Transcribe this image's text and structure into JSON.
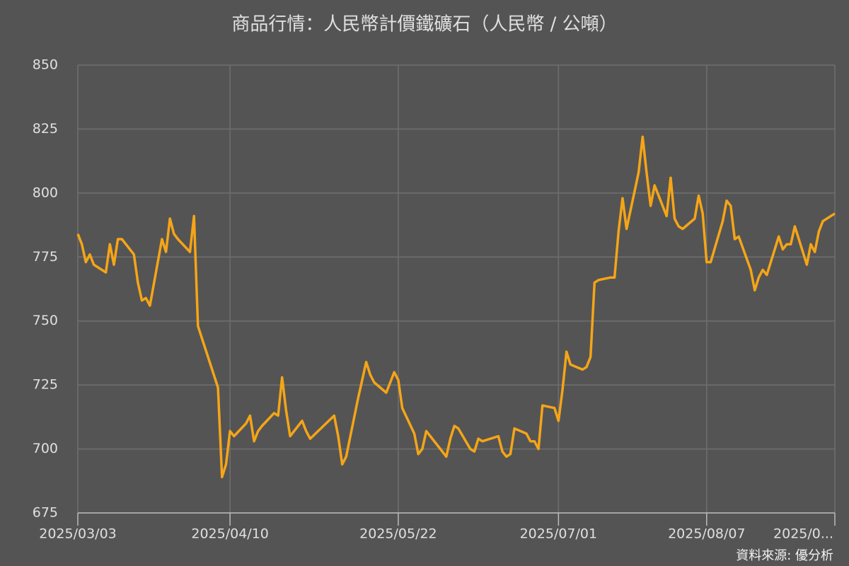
{
  "chart_data": {
    "type": "line",
    "title": "商品行情：人民幣計價鐵礦石（人民幣 / 公噸）",
    "source": "資料來源: 優分析",
    "color": "#f5a517",
    "grid": true,
    "x": [
      "2025/03/03",
      "2025/03/04",
      "2025/03/05",
      "2025/03/06",
      "2025/03/07",
      "2025/03/10",
      "2025/03/11",
      "2025/03/12",
      "2025/03/13",
      "2025/03/14",
      "2025/03/17",
      "2025/03/18",
      "2025/03/19",
      "2025/03/20",
      "2025/03/21",
      "2025/03/24",
      "2025/03/25",
      "2025/03/26",
      "2025/03/27",
      "2025/03/28",
      "2025/03/31",
      "2025/04/01",
      "2025/04/02",
      "2025/04/07",
      "2025/04/08",
      "2025/04/09",
      "2025/04/10",
      "2025/04/11",
      "2025/04/14",
      "2025/04/15",
      "2025/04/16",
      "2025/04/17",
      "2025/04/18",
      "2025/04/21",
      "2025/04/22",
      "2025/04/23",
      "2025/04/24",
      "2025/04/25",
      "2025/04/28",
      "2025/04/29",
      "2025/04/30",
      "2025/05/06",
      "2025/05/07",
      "2025/05/08",
      "2025/05/09",
      "2025/05/12",
      "2025/05/13",
      "2025/05/14",
      "2025/05/15",
      "2025/05/16",
      "2025/05/19",
      "2025/05/20",
      "2025/05/21",
      "2025/05/22",
      "2025/05/23",
      "2025/05/26",
      "2025/05/27",
      "2025/05/28",
      "2025/05/29",
      "2025/05/30",
      "2025/06/03",
      "2025/06/04",
      "2025/06/05",
      "2025/06/06",
      "2025/06/09",
      "2025/06/10",
      "2025/06/11",
      "2025/06/12",
      "2025/06/16",
      "2025/06/17",
      "2025/06/18",
      "2025/06/19",
      "2025/06/20",
      "2025/06/23",
      "2025/06/24",
      "2025/06/25",
      "2025/06/26",
      "2025/06/27",
      "2025/06/30",
      "2025/07/01",
      "2025/07/02",
      "2025/07/03",
      "2025/07/04",
      "2025/07/07",
      "2025/07/08",
      "2025/07/09",
      "2025/07/10",
      "2025/07/11",
      "2025/07/14",
      "2025/07/15",
      "2025/07/16",
      "2025/07/17",
      "2025/07/18",
      "2025/07/21",
      "2025/07/22",
      "2025/07/23",
      "2025/07/24",
      "2025/07/25",
      "2025/07/28",
      "2025/07/29",
      "2025/07/30",
      "2025/07/31",
      "2025/08/01",
      "2025/08/04",
      "2025/08/05",
      "2025/08/06",
      "2025/08/07",
      "2025/08/08",
      "2025/08/11",
      "2025/08/12",
      "2025/08/13",
      "2025/08/14",
      "2025/08/15",
      "2025/08/18",
      "2025/08/19",
      "2025/08/20",
      "2025/08/21",
      "2025/08/22",
      "2025/08/25",
      "2025/08/26",
      "2025/08/27",
      "2025/08/28",
      "2025/08/29",
      "2025/09/01",
      "2025/09/02",
      "2025/09/03",
      "2025/09/04",
      "2025/09/05",
      "2025/09/08"
    ],
    "values": [
      784,
      780,
      773,
      776,
      772,
      769,
      780,
      772,
      782,
      782,
      776,
      765,
      758,
      759,
      756,
      782,
      777,
      790,
      784,
      782,
      777,
      791,
      748,
      724,
      689,
      694,
      707,
      705,
      710,
      713,
      703,
      707,
      709,
      714,
      713,
      728,
      715,
      705,
      711,
      707,
      704,
      713,
      705,
      694,
      697,
      720,
      727,
      734,
      729,
      726,
      722,
      726,
      730,
      727,
      716,
      706,
      698,
      700,
      707,
      705,
      697,
      704,
      709,
      708,
      700,
      699,
      704,
      703,
      705,
      699,
      697,
      698,
      708,
      706,
      703,
      703,
      700,
      717,
      716,
      711,
      723,
      738,
      733,
      731,
      732,
      736,
      765,
      766,
      767,
      767,
      785,
      798,
      786,
      808,
      822,
      808,
      795,
      803,
      791,
      806,
      790,
      787,
      786,
      790,
      799,
      792,
      773,
      773,
      789,
      797,
      795,
      782,
      783,
      770,
      762,
      767,
      770,
      768,
      783,
      778,
      780,
      780,
      787,
      772,
      780,
      777,
      785,
      789,
      792
    ],
    "xlim": [
      "2025/03/03",
      "2025/09/08"
    ],
    "xticks": [
      "2025/03/03",
      "2025/04/10",
      "2025/05/22",
      "2025/07/01",
      "2025/08/07",
      {
        "value": "2025/09/08",
        "label": "2025/0..."
      }
    ],
    "ylim": [
      675,
      850
    ],
    "yticks": [
      675,
      700,
      725,
      750,
      775,
      800,
      825,
      850
    ]
  }
}
